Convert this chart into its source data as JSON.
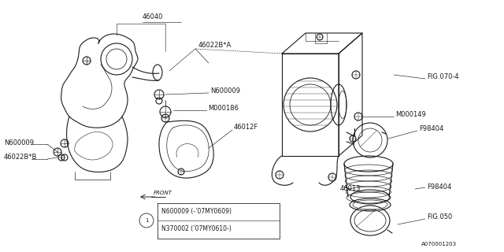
{
  "bg_color": "#ffffff",
  "line_color": "#1a1a1a",
  "text_color": "#1a1a1a",
  "diagram_number": "A070001203",
  "lw": 0.8,
  "fs": 6.0,
  "note_line1": "N600009 (-’07MY0609)",
  "note_line2": "N370002 (’07MY0610-)"
}
